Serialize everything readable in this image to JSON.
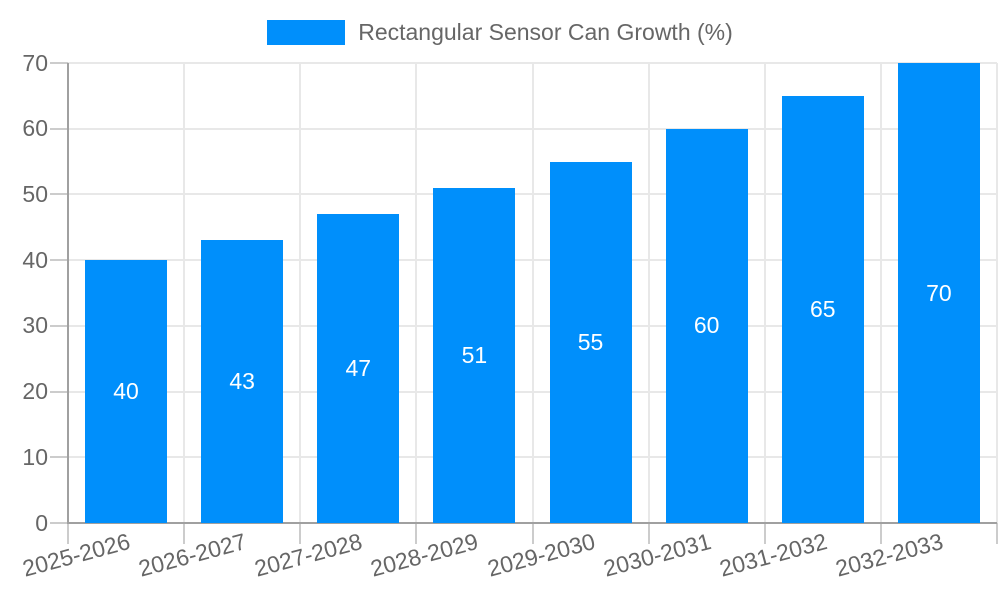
{
  "chart_data": {
    "type": "bar",
    "title": "Rectangular Sensor Can Growth (%)",
    "legend_position": "top",
    "categories": [
      "2025-2026",
      "2026-2027",
      "2027-2028",
      "2028-2029",
      "2029-2030",
      "2030-2031",
      "2031-2032",
      "2032-2033"
    ],
    "series": [
      {
        "name": "Rectangular Sensor Can Growth (%)",
        "values": [
          40,
          43,
          47,
          51,
          55,
          60,
          65,
          70
        ]
      }
    ],
    "xlabel": "",
    "ylabel": "",
    "ylim": [
      0,
      70
    ],
    "y_ticks": [
      0,
      10,
      20,
      30,
      40,
      50,
      60,
      70
    ],
    "grid": true,
    "x_label_rotation_deg": -15,
    "colors": {
      "bar": "#008FFB",
      "data_label": "#FFFFFF",
      "axis_text": "#666666",
      "legend_text": "#666666",
      "gridline": "#E8E8E8",
      "axis_line": "#A0A0A0",
      "tick": "#CCCCCC",
      "background": "#FFFFFF"
    }
  }
}
